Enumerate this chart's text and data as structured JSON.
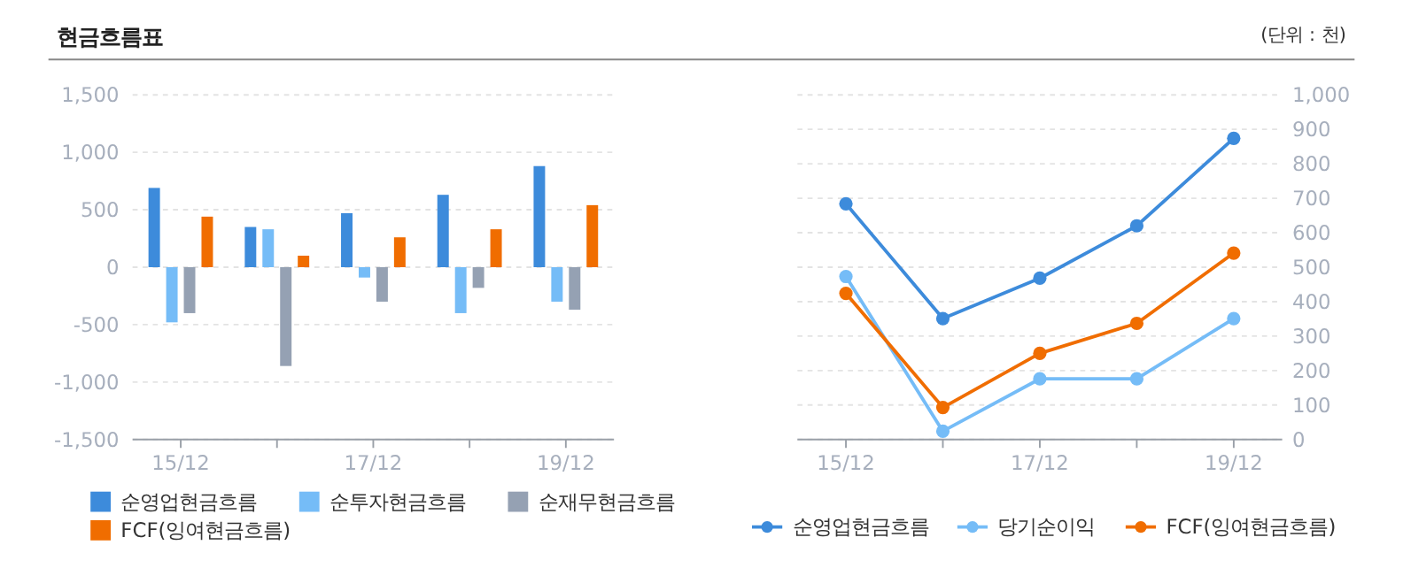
{
  "chart_data": [
    {
      "type": "bar",
      "title": "현금흐름표",
      "annotations": [
        "(단위 : 천)"
      ],
      "categories": [
        "15/12",
        null,
        "17/12",
        null,
        "19/12"
      ],
      "series": [
        {
          "name": "순영업현금흐름",
          "color": "#3d8bdb",
          "values": [
            690,
            350,
            470,
            630,
            880
          ]
        },
        {
          "name": "순투자현금흐름",
          "color": "#75bcf7",
          "values": [
            -480,
            330,
            -90,
            -400,
            -300
          ]
        },
        {
          "name": "순재무현금흐름",
          "color": "#95a1b3",
          "values": [
            -400,
            -860,
            -300,
            -180,
            -370
          ]
        },
        {
          "name": "FCF(잉여현금흐름)",
          "color": "#f06d00",
          "values": [
            440,
            100,
            260,
            330,
            540
          ]
        }
      ],
      "ylim": [
        -1500,
        1500
      ],
      "yticks": [
        {
          "value": -1500,
          "label": "-1,500"
        },
        {
          "value": -1000,
          "label": "-1,000"
        },
        -500,
        0,
        500,
        {
          "value": 1000,
          "label": "1,000"
        },
        {
          "value": 1500,
          "label": "1,500"
        }
      ],
      "grid": "y",
      "legend": "bottom"
    },
    {
      "type": "line",
      "categories": [
        "15/12",
        null,
        "17/12",
        null,
        "19/12"
      ],
      "series": [
        {
          "name": "순영업현금흐름",
          "color": "#3d8bdb",
          "values": [
            684,
            351,
            468,
            620,
            874
          ]
        },
        {
          "name": "당기순이익",
          "color": "#75bcf7",
          "values": [
            473,
            24,
            176,
            176,
            351
          ]
        },
        {
          "name": "FCF(잉여현금흐름)",
          "color": "#f06d00",
          "values": [
            424,
            93,
            250,
            337,
            541
          ]
        }
      ],
      "ylim": [
        0,
        1000
      ],
      "yticks": [
        0,
        100,
        200,
        300,
        400,
        500,
        600,
        700,
        800,
        900,
        {
          "value": 1000,
          "label": "1,000"
        }
      ],
      "grid": "y",
      "legend": "bottom",
      "marker": "circle"
    }
  ]
}
